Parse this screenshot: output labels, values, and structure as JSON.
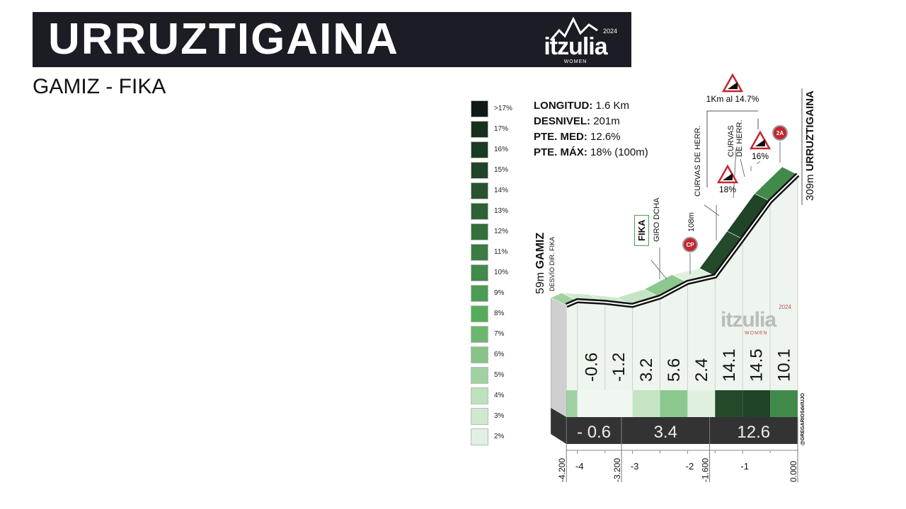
{
  "header": {
    "title": "URRUZTIGAINA",
    "subtitle": "GAMIZ - FIKA",
    "logo": {
      "word": "itzulia",
      "year": "2024",
      "sub": "WOMEN"
    }
  },
  "stats": [
    {
      "label": "LONGITUD:",
      "value": "1.6 Km"
    },
    {
      "label": "DESNIVEL:",
      "value": "201m"
    },
    {
      "label": "PTE. MED:",
      "value": "12.6%"
    },
    {
      "label": "PTE. MÁX:",
      "value": "18% (100m)"
    }
  ],
  "legend": [
    {
      "label": ">17%",
      "color": "#0f1a12"
    },
    {
      "label": "17%",
      "color": "#16301c"
    },
    {
      "label": "16%",
      "color": "#1b3a22"
    },
    {
      "label": "15%",
      "color": "#1f4427"
    },
    {
      "label": "14%",
      "color": "#27532f"
    },
    {
      "label": "13%",
      "color": "#2d6136"
    },
    {
      "label": "12%",
      "color": "#336e3c"
    },
    {
      "label": "11%",
      "color": "#3a7c43"
    },
    {
      "label": "10%",
      "color": "#428a4a"
    },
    {
      "label": "9%",
      "color": "#4a9d52"
    },
    {
      "label": "8%",
      "color": "#55ad5c"
    },
    {
      "label": "7%",
      "color": "#69b86d"
    },
    {
      "label": "6%",
      "color": "#86c488"
    },
    {
      "label": "5%",
      "color": "#a0d2a1"
    },
    {
      "label": "4%",
      "color": "#bde1bd"
    },
    {
      "label": "3%",
      "color": "#cfe9cf"
    },
    {
      "label": "2%",
      "color": "#e1f1e1"
    }
  ],
  "annotations": {
    "start": {
      "alt": "59m",
      "name": "GAMIZ",
      "note": "DESVÍO DIR. FIKA"
    },
    "fika": "FIKA",
    "giro": "GIRO DCHA",
    "cp_alt": "108m",
    "cp_icon": "CP",
    "curvas1": "CURVAS DE HERR.",
    "curvas2a": "CURVAS",
    "curvas2b": "DE HERR.",
    "steep1": "18%",
    "steep2": "16%",
    "km_steep": "1Km al 14.7%",
    "cat_icon": "2A",
    "summit": {
      "alt": "309m",
      "name": "URRUZTIGAINA"
    },
    "credit": "@GREGARIOSdelUJO",
    "watermark": {
      "word": "itzulia",
      "year": "2024",
      "sub": "WOMEN"
    }
  },
  "chart_data": {
    "type": "area",
    "xlabel": "",
    "ylabel": "",
    "xlim": [
      -4.2,
      0
    ],
    "profile": [
      {
        "km": -4.2,
        "alt": 59
      },
      {
        "km": -4.0,
        "alt": 68
      },
      {
        "km": -3.5,
        "alt": 65
      },
      {
        "km": -3.0,
        "alt": 59
      },
      {
        "km": -2.5,
        "alt": 75
      },
      {
        "km": -2.0,
        "alt": 103
      },
      {
        "km": -1.5,
        "alt": 115
      },
      {
        "km": -1.0,
        "alt": 186
      },
      {
        "km": -0.5,
        "alt": 258
      },
      {
        "km": 0.0,
        "alt": 309
      }
    ],
    "segments": [
      {
        "from": -4.2,
        "to": -4.0,
        "label": "",
        "color": "#a0d2a1"
      },
      {
        "from": -4.0,
        "to": -3.5,
        "label": "-0.6",
        "color": "#f0f6f0"
      },
      {
        "from": -3.5,
        "to": -3.0,
        "label": "-1.2",
        "color": "#f0f6f0"
      },
      {
        "from": -3.0,
        "to": -2.5,
        "label": "3.2",
        "color": "#c4e4c4"
      },
      {
        "from": -2.5,
        "to": -2.0,
        "label": "5.6",
        "color": "#8cc78e"
      },
      {
        "from": -2.0,
        "to": -1.5,
        "label": "2.4",
        "color": "#dff0df"
      },
      {
        "from": -1.5,
        "to": -1.0,
        "label": "14.1",
        "color": "#234a2b"
      },
      {
        "from": -1.0,
        "to": -0.5,
        "label": "14.5",
        "color": "#1f4427"
      },
      {
        "from": -0.5,
        "to": 0.0,
        "label": "10.1",
        "color": "#428a4a"
      }
    ],
    "sections": [
      {
        "from": -4.2,
        "to": -3.2,
        "label": "- 0.6"
      },
      {
        "from": -3.2,
        "to": -1.6,
        "label": "3.4"
      },
      {
        "from": -1.6,
        "to": 0.0,
        "label": "12.6"
      }
    ],
    "km_ticks": [
      {
        "km": -4,
        "label": "-4"
      },
      {
        "km": -3,
        "label": "-3"
      },
      {
        "km": -2,
        "label": "-2"
      },
      {
        "km": -1,
        "label": "-1"
      }
    ],
    "distance_marks": [
      {
        "km": -4.2,
        "label": "-4.200"
      },
      {
        "km": -3.2,
        "label": "-3.200"
      },
      {
        "km": -1.6,
        "label": "-1.600"
      },
      {
        "km": 0.0,
        "label": "0.000"
      }
    ]
  }
}
